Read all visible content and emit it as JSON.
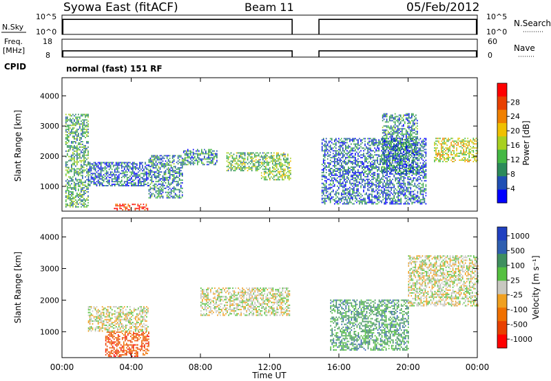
{
  "header": {
    "title": "Syowa East (fitACF)",
    "beam": "Beam 11",
    "date": "05/Feb/2012"
  },
  "noise_panel": {
    "left_label": "N.Sky",
    "right_label": "N.Search",
    "left_ticks": [
      "10^5",
      "10^0"
    ],
    "right_ticks": [
      "10^5",
      "10^0"
    ]
  },
  "freq_panel": {
    "left_label_1": "Freq.",
    "left_label_2": "[MHz]",
    "right_label": "Nave",
    "left_ticks": [
      "18",
      "8"
    ],
    "right_ticks": [
      "60",
      "0"
    ]
  },
  "cpid": {
    "label": "CPID",
    "text": "normal (fast) 151 RF"
  },
  "colors": {
    "power_scale": [
      "#0000ff",
      "#1f4fb4",
      "#2b8a5a",
      "#44b844",
      "#a8d020",
      "#f0c000",
      "#f08000",
      "#e84000",
      "#ff0000"
    ],
    "velocity_scale": [
      "#2040c0",
      "#2f5fb0",
      "#3f8f5f",
      "#55c040",
      "#c8c8c0",
      "#f0a020",
      "#f07000",
      "#e84000",
      "#ff0000"
    ],
    "ground_scatter": "#c0c0bc"
  },
  "chart_data": [
    {
      "type": "heatmap",
      "name": "power",
      "ylabel": "Slant Range [km]",
      "yticks": [
        "1000",
        "2000",
        "3000",
        "4000"
      ],
      "ylim": [
        180,
        4600
      ],
      "xlim": [
        0,
        24
      ],
      "colorbar": {
        "label": "Power [dB]",
        "ticks": [
          "4",
          "8",
          "12",
          "16",
          "20",
          "24",
          "28"
        ],
        "range": [
          0,
          30
        ]
      },
      "data_gap_hours": [
        13.3,
        14.85
      ],
      "echo_regions": [
        {
          "t": [
            0.2,
            1.5
          ],
          "r": [
            300,
            3400
          ],
          "level": 10
        },
        {
          "t": [
            1.5,
            5.0
          ],
          "r": [
            1000,
            1800
          ],
          "level": 6
        },
        {
          "t": [
            3.0,
            5.0
          ],
          "r": [
            200,
            400
          ],
          "level": 26
        },
        {
          "t": [
            5.0,
            7.0
          ],
          "r": [
            600,
            2000
          ],
          "level": 8
        },
        {
          "t": [
            7.0,
            9.0
          ],
          "r": [
            1700,
            2200
          ],
          "level": 8
        },
        {
          "t": [
            9.5,
            13.2
          ],
          "r": [
            1500,
            2100
          ],
          "level": 12
        },
        {
          "t": [
            11.5,
            13.2
          ],
          "r": [
            1200,
            1500
          ],
          "level": 14
        },
        {
          "t": [
            15.0,
            21.0
          ],
          "r": [
            400,
            2600
          ],
          "level": 6
        },
        {
          "t": [
            18.5,
            20.5
          ],
          "r": [
            1400,
            3400
          ],
          "level": 8
        },
        {
          "t": [
            21.5,
            24.0
          ],
          "r": [
            1800,
            2600
          ],
          "level": 16
        }
      ]
    },
    {
      "type": "heatmap",
      "name": "velocity",
      "ylabel": "Slant Range [km]",
      "xlabel": "Time UT",
      "yticks": [
        "1000",
        "2000",
        "3000",
        "4000"
      ],
      "ylim": [
        180,
        4600
      ],
      "xlim": [
        0,
        24
      ],
      "xticks": [
        "00:00",
        "04:00",
        "08:00",
        "12:00",
        "16:00",
        "20:00",
        "00:00"
      ],
      "colorbar": {
        "label": "Velocity [m s⁻¹]",
        "ticks": [
          "1000",
          "500",
          "100",
          "25",
          "-25",
          "-100",
          "-500",
          "-1000"
        ],
        "range": [
          -1000,
          1000
        ]
      },
      "data_gap_hours": [
        13.3,
        14.85
      ],
      "echo_regions": [
        {
          "t": [
            2.5,
            5.0
          ],
          "r": [
            200,
            1000
          ],
          "level": -600
        },
        {
          "t": [
            1.5,
            5.0
          ],
          "r": [
            1000,
            1800
          ],
          "level": 0
        },
        {
          "t": [
            8.0,
            13.2
          ],
          "r": [
            1500,
            2400
          ],
          "level": 0
        },
        {
          "t": [
            15.5,
            20.0
          ],
          "r": [
            400,
            2000
          ],
          "level": 400
        },
        {
          "t": [
            20.0,
            24.0
          ],
          "r": [
            1800,
            3400
          ],
          "level": 0
        }
      ]
    }
  ],
  "noise_series": [
    {
      "t": [
        0.05,
        13.3
      ],
      "level": 0.78
    },
    {
      "t": [
        14.85,
        23.95
      ],
      "level": 0.78
    }
  ],
  "freq_series": [
    {
      "t": [
        0.05,
        13.3
      ],
      "level": 0.35
    },
    {
      "t": [
        14.85,
        23.95
      ],
      "level": 0.35
    }
  ]
}
